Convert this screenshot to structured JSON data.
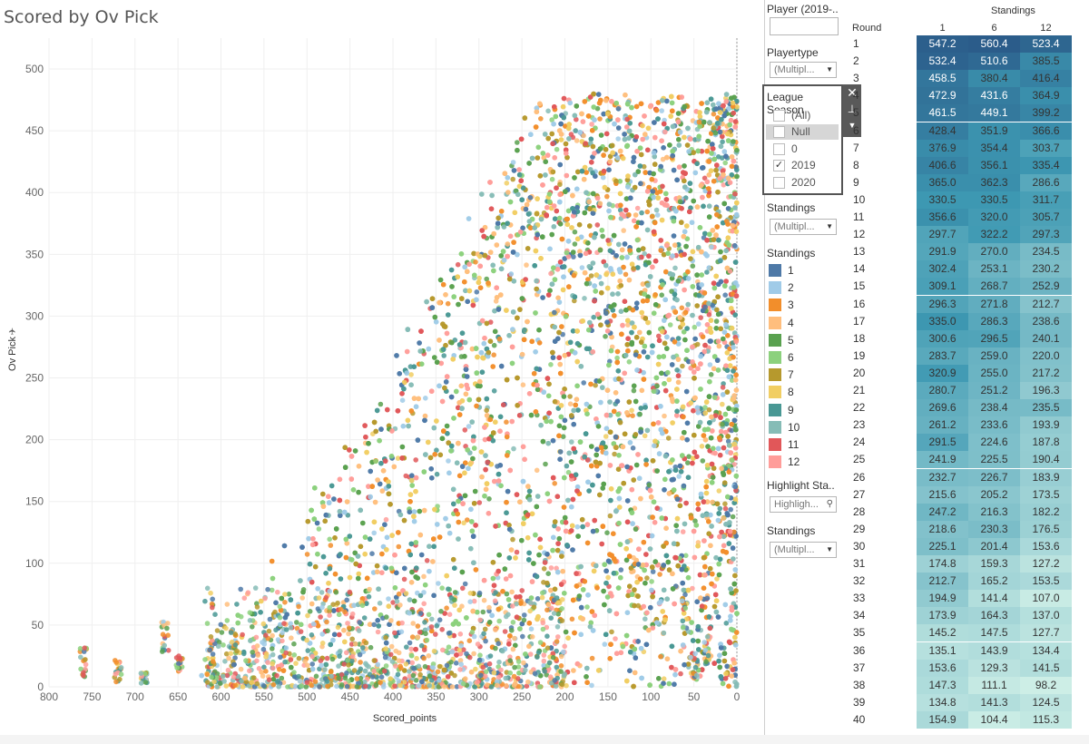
{
  "chart_data": {
    "type": "scatter",
    "title": "Scored by Ov Pick",
    "xlabel": "Scored_points",
    "ylabel": "Ov Pick",
    "xlim": [
      800,
      0
    ],
    "ylim": [
      0,
      525
    ],
    "x_reversed": true,
    "x_ticks": [
      800,
      750,
      700,
      650,
      600,
      550,
      500,
      450,
      400,
      350,
      300,
      250,
      200,
      150,
      100,
      50,
      0
    ],
    "y_ticks": [
      0,
      50,
      100,
      150,
      200,
      250,
      300,
      350,
      400,
      450,
      500
    ],
    "grid": true,
    "legend_title": "Standings",
    "series_names": [
      "1",
      "2",
      "3",
      "4",
      "5",
      "6",
      "7",
      "8",
      "9",
      "10",
      "11",
      "12"
    ],
    "series_colors": [
      "#4e79a7",
      "#a0cbe8",
      "#f28e2b",
      "#ffbe7d",
      "#59a14f",
      "#8cd17d",
      "#b6992d",
      "#f1ce63",
      "#499894",
      "#86bcb6",
      "#e15759",
      "#ff9d9a"
    ],
    "point_count_approx": 12000,
    "point_distribution_note": ""
  },
  "header": {
    "title": "Scored by Ov Pick"
  },
  "filters": {
    "player_label": "Player (2019-..",
    "player_value": "",
    "playertype_label": "Playertype",
    "playertype_value": "(Multipl...",
    "standings1_label": "Standings",
    "standings1_value": "(Multipl...",
    "highlight_label": "Highlight Sta..",
    "highlight_placeholder": "Highligh...",
    "standings2_label": "Standings",
    "standings2_value": "(Multipl..."
  },
  "season_filter": {
    "title": "League Season",
    "options": [
      {
        "label": "(All)",
        "checked": false,
        "highlighted": false
      },
      {
        "label": "Null",
        "checked": false,
        "highlighted": true
      },
      {
        "label": "0",
        "checked": false,
        "highlighted": false
      },
      {
        "label": "2019",
        "checked": true,
        "highlighted": false
      },
      {
        "label": "2020",
        "checked": false,
        "highlighted": false
      }
    ]
  },
  "legend": {
    "title": "Standings",
    "items": [
      {
        "label": "1",
        "color": "#4e79a7"
      },
      {
        "label": "2",
        "color": "#a0cbe8"
      },
      {
        "label": "3",
        "color": "#f28e2b"
      },
      {
        "label": "4",
        "color": "#ffbe7d"
      },
      {
        "label": "5",
        "color": "#59a14f"
      },
      {
        "label": "6",
        "color": "#8cd17d"
      },
      {
        "label": "7",
        "color": "#b6992d"
      },
      {
        "label": "8",
        "color": "#f1ce63"
      },
      {
        "label": "9",
        "color": "#499894"
      },
      {
        "label": "10",
        "color": "#86bcb6"
      },
      {
        "label": "11",
        "color": "#e15759"
      },
      {
        "label": "12",
        "color": "#ff9d9a"
      }
    ]
  },
  "table": {
    "title": "Standings",
    "row_header": "Round",
    "columns": [
      "1",
      "6",
      "12"
    ],
    "color_low": "#cdeee6",
    "color_high": "#2b5c8a",
    "rows": [
      {
        "round": "1",
        "values": [
          547.2,
          560.4,
          523.4
        ]
      },
      {
        "round": "2",
        "values": [
          532.4,
          510.6,
          385.5
        ]
      },
      {
        "round": "3",
        "values": [
          458.5,
          380.4,
          416.4
        ]
      },
      {
        "round": "4",
        "values": [
          472.9,
          431.6,
          364.9
        ]
      },
      {
        "round": "5",
        "values": [
          461.5,
          449.1,
          399.2
        ]
      },
      {
        "round": "6",
        "values": [
          428.4,
          351.9,
          366.6
        ]
      },
      {
        "round": "7",
        "values": [
          376.9,
          354.4,
          303.7
        ]
      },
      {
        "round": "8",
        "values": [
          406.6,
          356.1,
          335.4
        ]
      },
      {
        "round": "9",
        "values": [
          365.0,
          362.3,
          286.6
        ]
      },
      {
        "round": "10",
        "values": [
          330.5,
          330.5,
          311.7
        ]
      },
      {
        "round": "11",
        "values": [
          356.6,
          320.0,
          305.7
        ]
      },
      {
        "round": "12",
        "values": [
          297.7,
          322.2,
          297.3
        ]
      },
      {
        "round": "13",
        "values": [
          291.9,
          270.0,
          234.5
        ]
      },
      {
        "round": "14",
        "values": [
          302.4,
          253.1,
          230.2
        ]
      },
      {
        "round": "15",
        "values": [
          309.1,
          268.7,
          252.9
        ]
      },
      {
        "round": "16",
        "values": [
          296.3,
          271.8,
          212.7
        ]
      },
      {
        "round": "17",
        "values": [
          335.0,
          286.3,
          238.6
        ]
      },
      {
        "round": "18",
        "values": [
          300.6,
          296.5,
          240.1
        ]
      },
      {
        "round": "19",
        "values": [
          283.7,
          259.0,
          220.0
        ]
      },
      {
        "round": "20",
        "values": [
          320.9,
          255.0,
          217.2
        ]
      },
      {
        "round": "21",
        "values": [
          280.7,
          251.2,
          196.3
        ]
      },
      {
        "round": "22",
        "values": [
          269.6,
          238.4,
          235.5
        ]
      },
      {
        "round": "23",
        "values": [
          261.2,
          233.6,
          193.9
        ]
      },
      {
        "round": "24",
        "values": [
          291.5,
          224.6,
          187.8
        ]
      },
      {
        "round": "25",
        "values": [
          241.9,
          225.5,
          190.4
        ]
      },
      {
        "round": "26",
        "values": [
          232.7,
          226.7,
          183.9
        ]
      },
      {
        "round": "27",
        "values": [
          215.6,
          205.2,
          173.5
        ]
      },
      {
        "round": "28",
        "values": [
          247.2,
          216.3,
          182.2
        ]
      },
      {
        "round": "29",
        "values": [
          218.6,
          230.3,
          176.5
        ]
      },
      {
        "round": "30",
        "values": [
          225.1,
          201.4,
          153.6
        ]
      },
      {
        "round": "31",
        "values": [
          174.8,
          159.3,
          127.2
        ]
      },
      {
        "round": "32",
        "values": [
          212.7,
          165.2,
          153.5
        ]
      },
      {
        "round": "33",
        "values": [
          194.9,
          141.4,
          107.0
        ]
      },
      {
        "round": "34",
        "values": [
          173.9,
          164.3,
          137.0
        ]
      },
      {
        "round": "35",
        "values": [
          145.2,
          147.5,
          127.7
        ]
      },
      {
        "round": "36",
        "values": [
          135.1,
          143.9,
          134.4
        ]
      },
      {
        "round": "37",
        "values": [
          153.6,
          129.3,
          141.5
        ]
      },
      {
        "round": "38",
        "values": [
          147.3,
          111.1,
          98.2
        ]
      },
      {
        "round": "39",
        "values": [
          134.8,
          141.3,
          124.5
        ]
      },
      {
        "round": "40",
        "values": [
          154.9,
          104.4,
          115.3
        ]
      }
    ]
  }
}
